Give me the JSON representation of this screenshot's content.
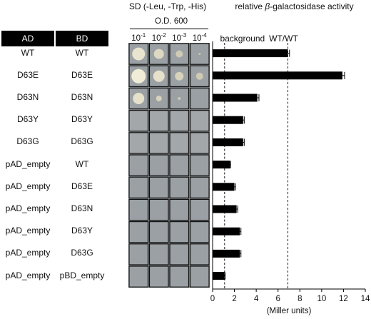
{
  "plate": {
    "medium": "SD (-Leu, -Trp, -His)",
    "od_label": "O.D. 600",
    "dilutions": [
      {
        "base": "10",
        "exp": "-1"
      },
      {
        "base": "10",
        "exp": "-2"
      },
      {
        "base": "10",
        "exp": "-3"
      },
      {
        "base": "10",
        "exp": "-4"
      }
    ]
  },
  "table": {
    "headers": [
      "AD",
      "BD"
    ],
    "rows": [
      [
        "WT",
        "WT"
      ],
      [
        "D63E",
        "D63E"
      ],
      [
        "D63N",
        "D63N"
      ],
      [
        "D63Y",
        "D63Y"
      ],
      [
        "D63G",
        "D63G"
      ],
      [
        "pAD_empty",
        "WT"
      ],
      [
        "pAD_empty",
        "D63E"
      ],
      [
        "pAD_empty",
        "D63N"
      ],
      [
        "pAD_empty",
        "D63Y"
      ],
      [
        "pAD_empty",
        "D63G"
      ],
      [
        "pAD_empty",
        "pBD_empty"
      ]
    ]
  },
  "chart_data": {
    "type": "bar",
    "orientation": "horizontal",
    "title": "relative β-galactosidase activity",
    "title_parts": {
      "prefix": "relative ",
      "beta": "β",
      "suffix": "-galactosidase activity"
    },
    "xlabel": "(Miller units)",
    "xlim": [
      0,
      14
    ],
    "xticks": [
      0,
      2,
      4,
      6,
      8,
      10,
      12,
      14
    ],
    "values": [
      6.9,
      11.9,
      4.1,
      2.8,
      2.8,
      1.6,
      2.0,
      2.2,
      2.5,
      2.5,
      1.1
    ],
    "errors": [
      0.15,
      0.2,
      0.15,
      0.1,
      0.1,
      0.05,
      0.1,
      0.1,
      0.1,
      0.1,
      0.05
    ],
    "reference_lines": [
      {
        "label": "background",
        "value": 1.1
      },
      {
        "label": "WT/WT",
        "value": 6.9
      }
    ],
    "bar_color": "#000000"
  }
}
